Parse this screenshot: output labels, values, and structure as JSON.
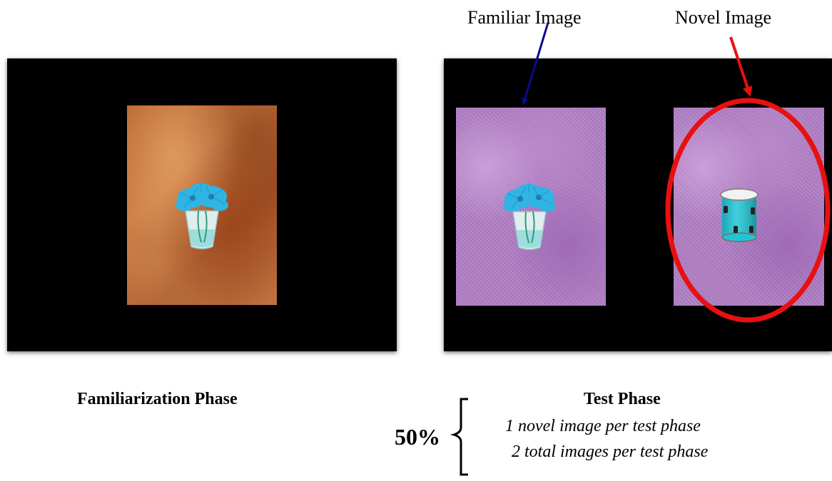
{
  "labels": {
    "familiar": "Familiar Image",
    "novel": "Novel Image"
  },
  "phases": {
    "familiarization": "Familiarization Phase",
    "test": "Test Phase"
  },
  "test_notes": {
    "line1": "1 novel image per test phase",
    "line2": "2 total images per test phase"
  },
  "percentage": "50%",
  "colors": {
    "familiar_arrow": "#0a0a8c",
    "novel_arrow": "#e81010",
    "novel_highlight": "#e81010"
  }
}
